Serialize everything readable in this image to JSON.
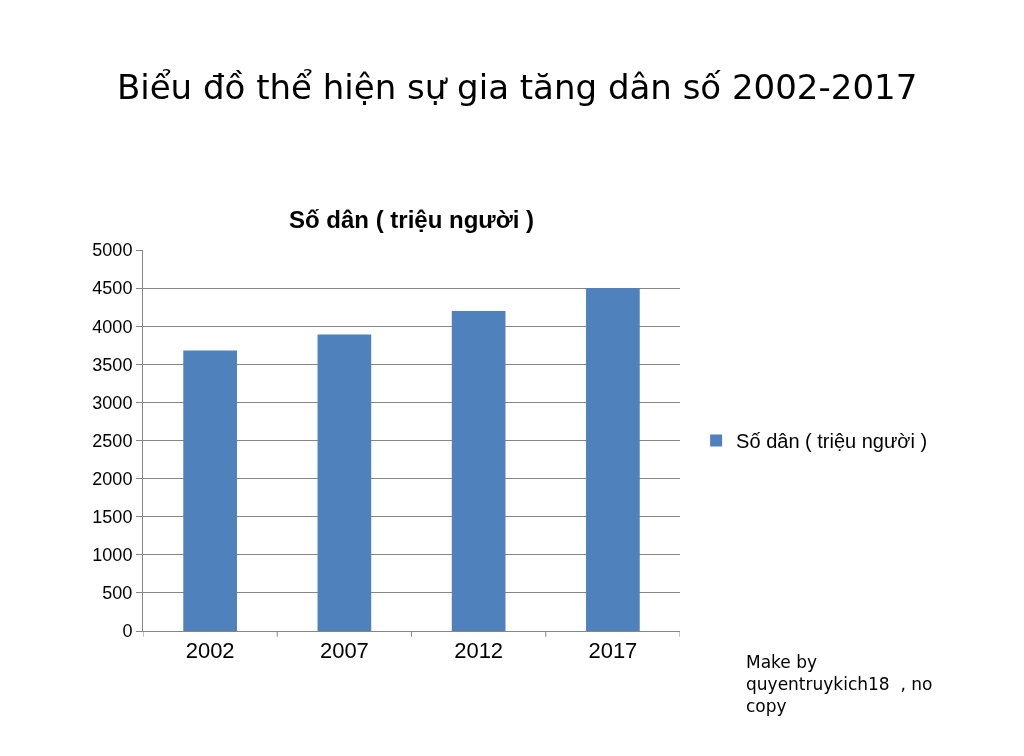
{
  "chart_data": {
    "type": "bar",
    "title": "Biểu đồ thể hiện sự gia tăng dân số 2002-2017",
    "subtitle": "Số dân ( triệu người )",
    "categories": [
      "2002",
      "2007",
      "2012",
      "2017"
    ],
    "series": [
      {
        "name": "Số dân ( triệu người )",
        "color": "#4f81bd",
        "values": [
          3680,
          3890,
          4200,
          4500
        ]
      }
    ],
    "ylim": [
      0,
      5000
    ],
    "yticks": [
      0,
      500,
      1000,
      1500,
      2000,
      2500,
      3000,
      3500,
      4000,
      4500,
      5000
    ],
    "grid": "y",
    "legend": "right",
    "annotations": [
      "Make by\nquyentruykich18  , no\ncopy"
    ]
  }
}
